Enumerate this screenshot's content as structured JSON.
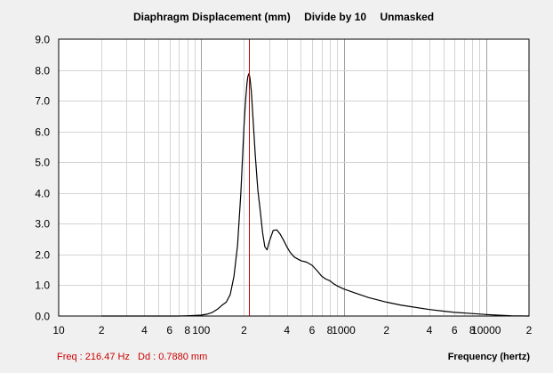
{
  "chart_data": {
    "type": "line",
    "title": "Diaphragm Displacement (mm)",
    "title_mode": "Divide by 10",
    "title_mask": "Unmasked",
    "xlabel": "Frequency (hertz)",
    "ylabel": "",
    "x_scale": "log",
    "xlim": [
      10,
      20000
    ],
    "ylim": [
      0,
      9
    ],
    "grid": true,
    "y_ticks": [
      "0.0",
      "1.0",
      "2.0",
      "3.0",
      "4.0",
      "5.0",
      "6.0",
      "7.0",
      "8.0",
      "9.0"
    ],
    "x_ticks": [
      {
        "value": 10,
        "label": "10"
      },
      {
        "value": 20,
        "label": "2"
      },
      {
        "value": 40,
        "label": "4"
      },
      {
        "value": 60,
        "label": "6"
      },
      {
        "value": 80,
        "label": "8"
      },
      {
        "value": 100,
        "label": "100"
      },
      {
        "value": 200,
        "label": "2"
      },
      {
        "value": 400,
        "label": "4"
      },
      {
        "value": 600,
        "label": "6"
      },
      {
        "value": 800,
        "label": "8"
      },
      {
        "value": 1000,
        "label": "1000"
      },
      {
        "value": 2000,
        "label": "2"
      },
      {
        "value": 4000,
        "label": "4"
      },
      {
        "value": 6000,
        "label": "6"
      },
      {
        "value": 8000,
        "label": "8"
      },
      {
        "value": 10000,
        "label": "10000"
      },
      {
        "value": 20000,
        "label": "2"
      }
    ],
    "series": [
      {
        "color": "#000000",
        "x": [
          20,
          30,
          40,
          50,
          60,
          70,
          80,
          90,
          100,
          110,
          120,
          130,
          140,
          150,
          160,
          170,
          180,
          190,
          200,
          205,
          210,
          213,
          216.5,
          220,
          225,
          230,
          240,
          250,
          260,
          270,
          280,
          290,
          300,
          320,
          340,
          360,
          380,
          400,
          420,
          450,
          500,
          550,
          600,
          650,
          700,
          750,
          800,
          850,
          900,
          1000,
          1200,
          1500,
          2000,
          2500,
          3000,
          4000,
          5000,
          6000,
          8000,
          10000,
          12000,
          15000,
          20000
        ],
        "y": [
          0.0,
          0.0,
          0.0,
          0.0,
          0.0,
          0.0,
          0.01,
          0.02,
          0.03,
          0.06,
          0.12,
          0.22,
          0.35,
          0.45,
          0.7,
          1.3,
          2.3,
          4.0,
          6.2,
          7.0,
          7.6,
          7.8,
          7.88,
          7.75,
          7.3,
          6.6,
          5.2,
          4.1,
          3.4,
          2.7,
          2.25,
          2.15,
          2.4,
          2.78,
          2.8,
          2.65,
          2.45,
          2.25,
          2.08,
          1.92,
          1.8,
          1.75,
          1.65,
          1.48,
          1.3,
          1.2,
          1.15,
          1.05,
          0.98,
          0.88,
          0.75,
          0.6,
          0.45,
          0.36,
          0.3,
          0.21,
          0.16,
          0.12,
          0.08,
          0.05,
          0.03,
          0.01,
          0.0
        ]
      }
    ],
    "marker": {
      "frequency": 216.47,
      "color": "#cc0000"
    }
  },
  "readout": {
    "freq_text": "Freq : 216.47 Hz",
    "dd_text": "Dd : 0.7880 mm",
    "color": "#cc0000"
  }
}
